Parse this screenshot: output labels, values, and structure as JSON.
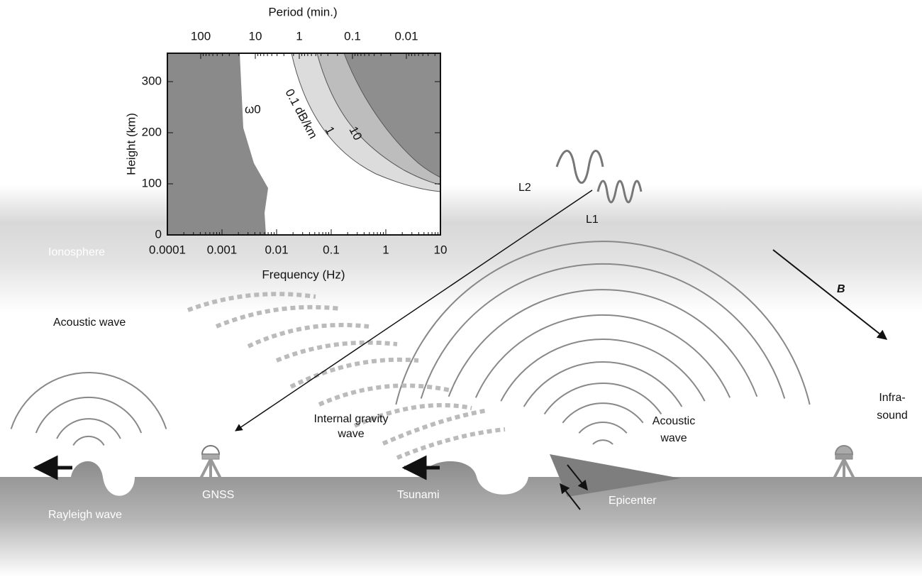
{
  "inset": {
    "top_axis_label": "Period (min.)",
    "top_ticks": [
      "100",
      "10",
      "1",
      "0.1",
      "0.01"
    ],
    "y_label": "Height (km)",
    "y_ticks": [
      "0",
      "100",
      "200",
      "300"
    ],
    "x_label": "Frequency (Hz)",
    "x_ticks": [
      "0.0001",
      "0.001",
      "0.01",
      "0.1",
      "1",
      "10"
    ],
    "omega": "ω0",
    "contours": [
      "0.1 dB/km",
      "1",
      "10"
    ]
  },
  "labels": {
    "ionosphere": "Ionosphere",
    "acoustic_left": "Acoustic wave",
    "gravity": [
      "Internal gravity",
      "wave"
    ],
    "acoustic_right": [
      "Acoustic",
      "wave"
    ],
    "infrasound": [
      "Infra-",
      "sound"
    ],
    "l2": "L2",
    "l1": "L1",
    "b": "B",
    "gnss": "GNSS",
    "tsunami": "Tsunami",
    "epicenter": "Epicenter",
    "rayleigh": "Rayleigh wave"
  }
}
